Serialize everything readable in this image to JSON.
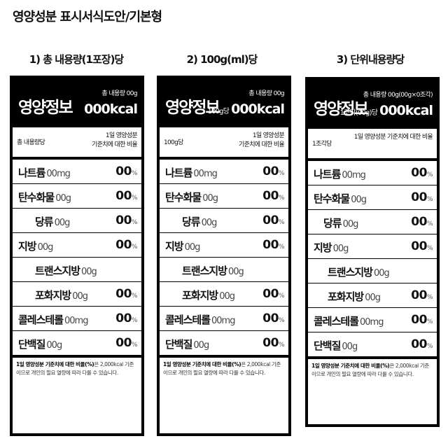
{
  "page_title": "영양성분 표시서식도안/기본형",
  "columns": [
    {
      "title": "1) 총 내용량(1포장)당",
      "header": {
        "big": "영양정보",
        "small": "총 내용량 00g",
        "kcal_prefix": "",
        "kcal": "000kcal"
      },
      "sub": {
        "left": "총 내용량당",
        "right1": "1일 영양성분",
        "right2": "기준치에 대한 비율"
      },
      "rows": [
        {
          "name": "나트륨",
          "amt": "00mg",
          "pct": "00",
          "unit": "%"
        },
        {
          "name": "탄수화물",
          "amt": "00g",
          "pct": "00",
          "unit": "%"
        },
        {
          "name": "당류",
          "amt": "00g",
          "pct": "00",
          "unit": "%"
        },
        {
          "name": "지방",
          "amt": "00g",
          "pct": "00",
          "unit": "%"
        },
        {
          "name": "트랜스지방",
          "amt": "00g",
          "pct": "",
          "unit": ""
        },
        {
          "name": "포화지방",
          "amt": "00g",
          "pct": "00",
          "unit": "%"
        },
        {
          "name": "콜레스테롤",
          "amt": "00mg",
          "pct": "00",
          "unit": "%"
        },
        {
          "name": "단백질",
          "amt": "00g",
          "pct": "00",
          "unit": "%"
        }
      ],
      "footer_bold": "1일 영양성분 기준치에 대한 비율(%)",
      "footer_rest": "은 2,000kcal 기준이므로 개인의 필요 열량에 따라 다를 수 있습니다."
    },
    {
      "title": "2) 100g(ml)당",
      "header": {
        "big": "영양정보",
        "small": "총 내용량 00g",
        "kcal_prefix": "100g당",
        "kcal": "000kcal"
      },
      "sub": {
        "left": "100g당",
        "right1": "1일 영양성분",
        "right2": "기준치에 대한 비율"
      },
      "rows": [
        {
          "name": "나트륨",
          "amt": "00mg",
          "pct": "00",
          "unit": "%"
        },
        {
          "name": "탄수화물",
          "amt": "00g",
          "pct": "00",
          "unit": "%"
        },
        {
          "name": "당류",
          "amt": "00g",
          "pct": "00",
          "unit": "%"
        },
        {
          "name": "지방",
          "amt": "00g",
          "pct": "00",
          "unit": "%"
        },
        {
          "name": "트랜스지방",
          "amt": "00g",
          "pct": "",
          "unit": ""
        },
        {
          "name": "포화지방",
          "amt": "00g",
          "pct": "00",
          "unit": "%"
        },
        {
          "name": "콜레스테롤",
          "amt": "00mg",
          "pct": "00",
          "unit": "%"
        },
        {
          "name": "단백질",
          "amt": "00g",
          "pct": "00",
          "unit": "%"
        }
      ],
      "footer_bold": "1일 영양성분 기준치에 대한 비율(%)",
      "footer_rest": "은 2,000kcal 기준이므로 개인의 필요 열량에 따라 다를 수 있습니다."
    },
    {
      "title": "3) 단위내용량당",
      "header": {
        "big": "영양정보",
        "small": "총 내용량 00g(00g×0조각)",
        "kcal_prefix": "1조각(00g)당",
        "kcal": "000kcal"
      },
      "sub": {
        "left": "1조각당",
        "right1": "1일 영양성분 기준치에 대한 비율",
        "right2": ""
      },
      "rows": [
        {
          "name": "나트륨",
          "amt": "00mg",
          "pct": "00",
          "unit": "%"
        },
        {
          "name": "탄수화물",
          "amt": "00g",
          "pct": "00",
          "unit": "%"
        },
        {
          "name": "당류",
          "amt": "00g",
          "pct": "00",
          "unit": "%"
        },
        {
          "name": "지방",
          "amt": "00g",
          "pct": "00",
          "unit": "%"
        },
        {
          "name": "트랜스지방",
          "amt": "00g",
          "pct": "",
          "unit": ""
        },
        {
          "name": "포화지방",
          "amt": "00g",
          "pct": "00",
          "unit": "%"
        },
        {
          "name": "콜레스테롤",
          "amt": "00mg",
          "pct": "00",
          "unit": "%"
        },
        {
          "name": "단백질",
          "amt": "00g",
          "pct": "00",
          "unit": "%"
        }
      ],
      "footer_bold": "1일 영양성분 기준치에 대한 비율(%)",
      "footer_rest": "은 2,000kcal 기준이므로 개인의 필요 열량에 따라 다를 수 있습니다."
    }
  ]
}
